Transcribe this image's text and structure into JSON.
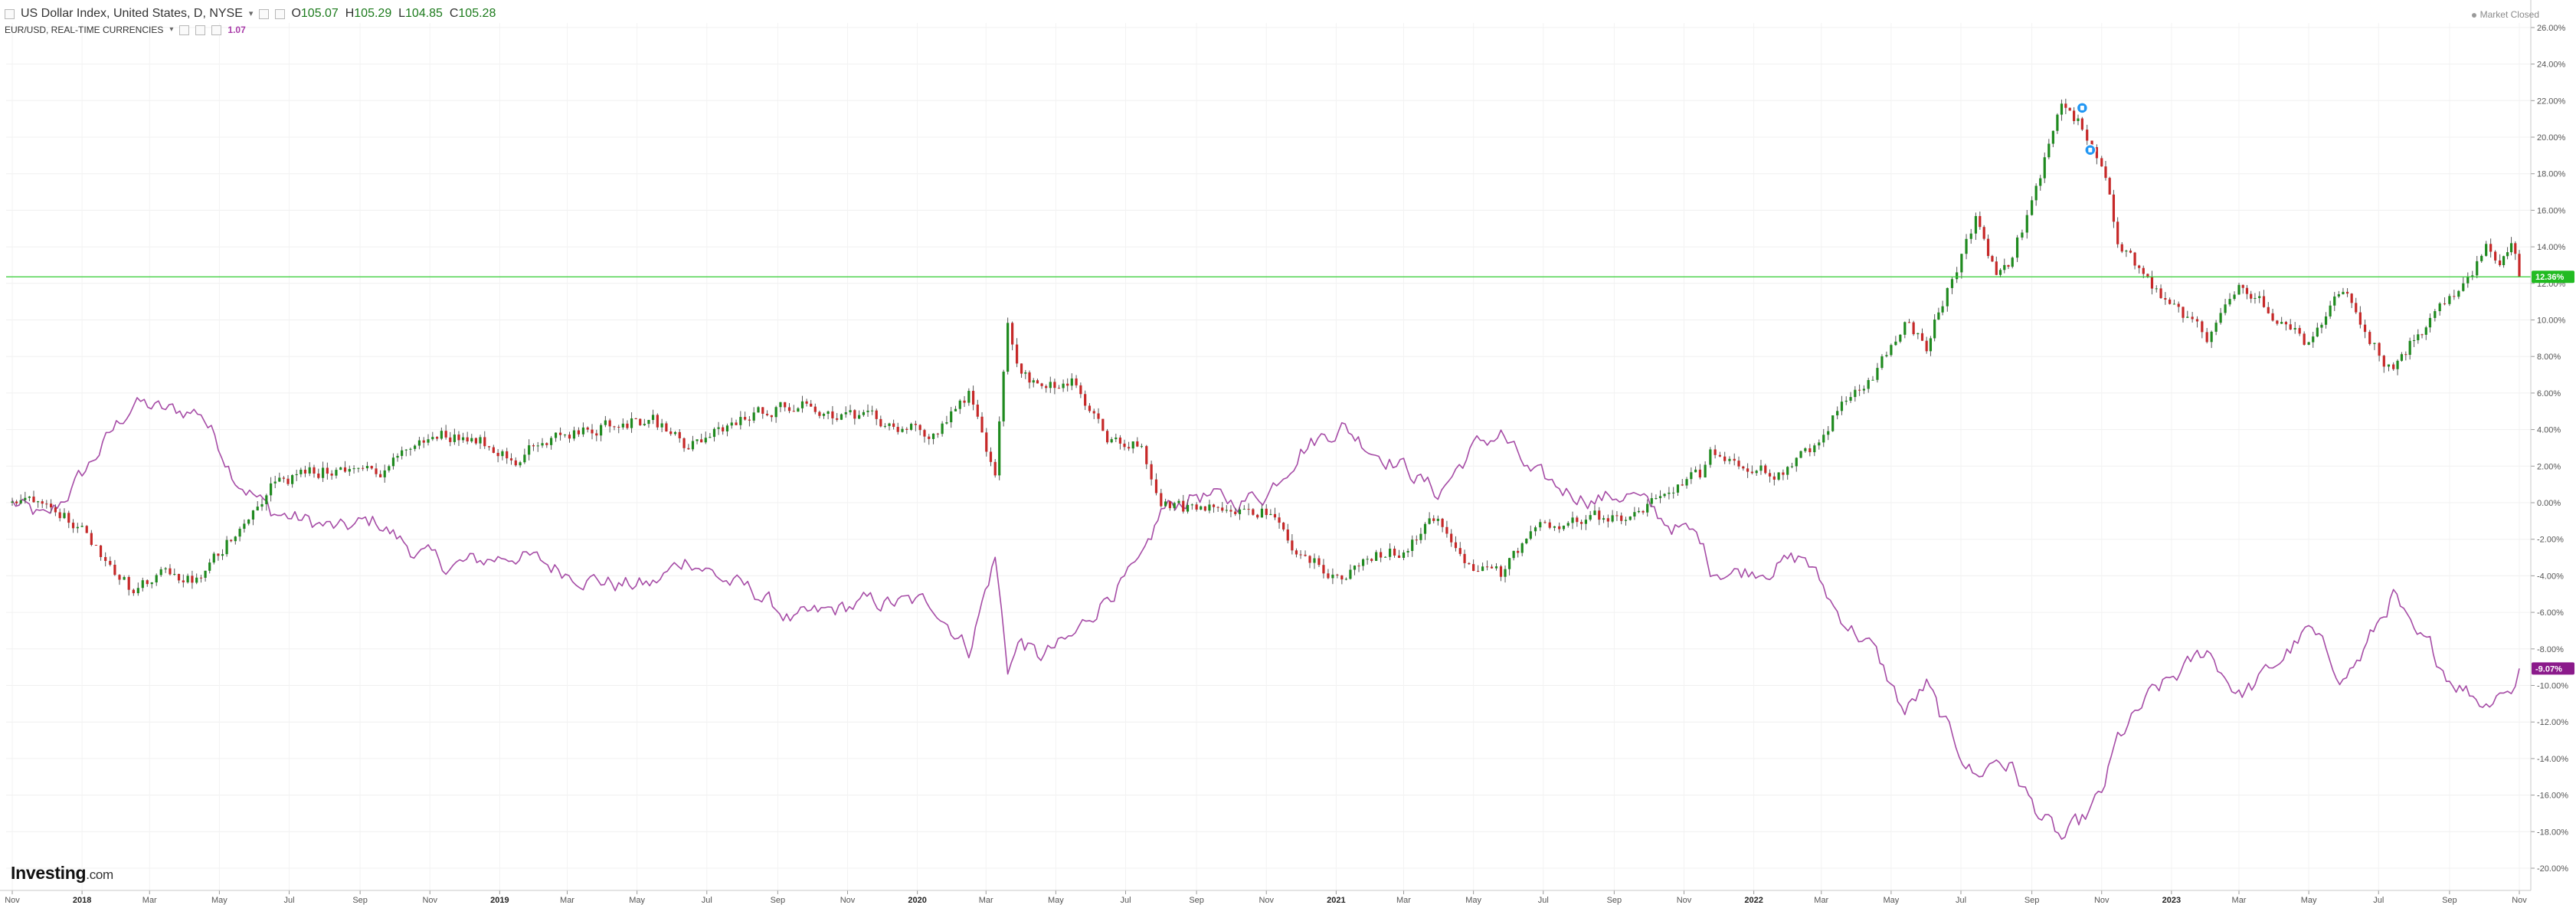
{
  "header": {
    "instrument_title": "US Dollar Index, United States, D, NYSE",
    "open_label": "O",
    "open_value": "105.07",
    "high_label": "H",
    "high_value": "105.29",
    "low_label": "L",
    "low_value": "104.85",
    "close_label": "C",
    "close_value": "105.28",
    "compare_title": "EUR/USD, REAL-TIME CURRENCIES",
    "compare_value": "1.07",
    "market_status": "Market Closed"
  },
  "branding": {
    "logo_text": "Investing",
    "logo_suffix": ".com"
  },
  "colors": {
    "up_candle": "#1f8a1f",
    "down_candle": "#c62828",
    "eurusd_line": "#a64ca6",
    "current_level_line": "#33cc33",
    "dxy_badge": "#22bb22",
    "eurusd_badge": "#8b1a8b",
    "event_marker": "#2196f3"
  },
  "chart_data": {
    "type": "line",
    "chart_style": "candlestick (DXY) with EUR/USD comparison line",
    "y_scale": "percent change from start",
    "ylim": [
      -21,
      27
    ],
    "y_ticks": [
      "26.00%",
      "24.00%",
      "22.00%",
      "20.00%",
      "18.00%",
      "16.00%",
      "14.00%",
      "12.00%",
      "10.00%",
      "8.00%",
      "6.00%",
      "4.00%",
      "2.00%",
      "0.00%",
      "-2.00%",
      "-4.00%",
      "-6.00%",
      "-8.00%",
      "-10.00%",
      "-12.00%",
      "-14.00%",
      "-16.00%",
      "-18.00%",
      "-20.00%"
    ],
    "x_tick_labels": [
      {
        "x": "2017-11",
        "label": "Nov"
      },
      {
        "x": "2018-01",
        "label": "2018",
        "bold": true
      },
      {
        "x": "2018-03",
        "label": "Mar"
      },
      {
        "x": "2018-05",
        "label": "May"
      },
      {
        "x": "2018-07",
        "label": "Jul"
      },
      {
        "x": "2018-09",
        "label": "Sep"
      },
      {
        "x": "2018-11",
        "label": "Nov"
      },
      {
        "x": "2019-01",
        "label": "2019",
        "bold": true
      },
      {
        "x": "2019-03",
        "label": "Mar"
      },
      {
        "x": "2019-05",
        "label": "May"
      },
      {
        "x": "2019-07",
        "label": "Jul"
      },
      {
        "x": "2019-09",
        "label": "Sep"
      },
      {
        "x": "2019-11",
        "label": "Nov"
      },
      {
        "x": "2020-01",
        "label": "2020",
        "bold": true
      },
      {
        "x": "2020-03",
        "label": "Mar"
      },
      {
        "x": "2020-05",
        "label": "May"
      },
      {
        "x": "2020-07",
        "label": "Jul"
      },
      {
        "x": "2020-09",
        "label": "Sep"
      },
      {
        "x": "2020-11",
        "label": "Nov"
      },
      {
        "x": "2021-01",
        "label": "2021",
        "bold": true
      },
      {
        "x": "2021-03",
        "label": "Mar"
      },
      {
        "x": "2021-05",
        "label": "May"
      },
      {
        "x": "2021-07",
        "label": "Jul"
      },
      {
        "x": "2021-09",
        "label": "Sep"
      },
      {
        "x": "2021-11",
        "label": "Nov"
      },
      {
        "x": "2022-01",
        "label": "2022",
        "bold": true
      },
      {
        "x": "2022-03",
        "label": "Mar"
      },
      {
        "x": "2022-05",
        "label": "May"
      },
      {
        "x": "2022-07",
        "label": "Jul"
      },
      {
        "x": "2022-09",
        "label": "Sep"
      },
      {
        "x": "2022-11",
        "label": "Nov"
      },
      {
        "x": "2023-01",
        "label": "2023",
        "bold": true
      },
      {
        "x": "2023-03",
        "label": "Mar"
      },
      {
        "x": "2023-05",
        "label": "May"
      },
      {
        "x": "2023-07",
        "label": "Jul"
      },
      {
        "x": "2023-09",
        "label": "Sep"
      },
      {
        "x": "2023-11",
        "label": "Nov"
      }
    ],
    "grid": true,
    "current_level": {
      "value": 12.36,
      "label": "12.36%"
    },
    "event_markers": [
      {
        "x": "2022-10-15",
        "y": 21.6
      },
      {
        "x": "2022-10-22",
        "y": 19.3
      }
    ],
    "series": [
      {
        "name": "US Dollar Index, United States, D, NYSE",
        "style": "candlestick",
        "last_label": "12.36%",
        "points": [
          {
            "x": "2017-11-01",
            "y": 0.0
          },
          {
            "x": "2017-12-01",
            "y": 0.5
          },
          {
            "x": "2018-01-01",
            "y": -1.5
          },
          {
            "x": "2018-02-15",
            "y": -4.8
          },
          {
            "x": "2018-03-15",
            "y": -4.0
          },
          {
            "x": "2018-04-15",
            "y": -4.3
          },
          {
            "x": "2018-05-15",
            "y": -1.5
          },
          {
            "x": "2018-06-15",
            "y": 1.0
          },
          {
            "x": "2018-07-15",
            "y": 1.5
          },
          {
            "x": "2018-08-15",
            "y": 2.0
          },
          {
            "x": "2018-09-15",
            "y": 1.5
          },
          {
            "x": "2018-10-15",
            "y": 3.0
          },
          {
            "x": "2018-11-15",
            "y": 3.8
          },
          {
            "x": "2018-12-15",
            "y": 3.5
          },
          {
            "x": "2019-01-15",
            "y": 2.5
          },
          {
            "x": "2019-02-15",
            "y": 3.5
          },
          {
            "x": "2019-03-15",
            "y": 3.8
          },
          {
            "x": "2019-04-15",
            "y": 4.5
          },
          {
            "x": "2019-05-15",
            "y": 4.5
          },
          {
            "x": "2019-06-15",
            "y": 3.0
          },
          {
            "x": "2019-07-15",
            "y": 4.0
          },
          {
            "x": "2019-08-15",
            "y": 5.0
          },
          {
            "x": "2019-09-15",
            "y": 5.5
          },
          {
            "x": "2019-10-15",
            "y": 5.0
          },
          {
            "x": "2019-11-15",
            "y": 4.5
          },
          {
            "x": "2019-12-15",
            "y": 4.2
          },
          {
            "x": "2020-01-15",
            "y": 3.8
          },
          {
            "x": "2020-02-15",
            "y": 6.0
          },
          {
            "x": "2020-03-09",
            "y": 1.5
          },
          {
            "x": "2020-03-20",
            "y": 9.5
          },
          {
            "x": "2020-04-01",
            "y": 7.0
          },
          {
            "x": "2020-04-15",
            "y": 6.5
          },
          {
            "x": "2020-05-15",
            "y": 6.5
          },
          {
            "x": "2020-06-15",
            "y": 3.5
          },
          {
            "x": "2020-07-15",
            "y": 3.0
          },
          {
            "x": "2020-08-01",
            "y": 0.0
          },
          {
            "x": "2020-09-01",
            "y": -0.5
          },
          {
            "x": "2020-10-01",
            "y": 0.0
          },
          {
            "x": "2020-11-01",
            "y": -0.5
          },
          {
            "x": "2020-12-01",
            "y": -3.0
          },
          {
            "x": "2021-01-06",
            "y": -4.0
          },
          {
            "x": "2021-02-01",
            "y": -3.0
          },
          {
            "x": "2021-03-01",
            "y": -2.5
          },
          {
            "x": "2021-03-31",
            "y": -0.8
          },
          {
            "x": "2021-05-01",
            "y": -3.5
          },
          {
            "x": "2021-05-25",
            "y": -4.0
          },
          {
            "x": "2021-06-20",
            "y": -1.5
          },
          {
            "x": "2021-07-15",
            "y": -1.0
          },
          {
            "x": "2021-08-15",
            "y": -0.8
          },
          {
            "x": "2021-09-15",
            "y": -1.0
          },
          {
            "x": "2021-10-15",
            "y": 0.5
          },
          {
            "x": "2021-11-15",
            "y": 1.5
          },
          {
            "x": "2021-11-24",
            "y": 2.8
          },
          {
            "x": "2021-12-15",
            "y": 2.5
          },
          {
            "x": "2022-01-15",
            "y": 1.5
          },
          {
            "x": "2022-02-15",
            "y": 2.5
          },
          {
            "x": "2022-03-15",
            "y": 5.0
          },
          {
            "x": "2022-04-15",
            "y": 7.0
          },
          {
            "x": "2022-05-13",
            "y": 10.0
          },
          {
            "x": "2022-06-01",
            "y": 8.5
          },
          {
            "x": "2022-06-15",
            "y": 11.0
          },
          {
            "x": "2022-07-14",
            "y": 15.5
          },
          {
            "x": "2022-08-01",
            "y": 12.5
          },
          {
            "x": "2022-08-15",
            "y": 13.5
          },
          {
            "x": "2022-09-01",
            "y": 16.5
          },
          {
            "x": "2022-09-27",
            "y": 21.5
          },
          {
            "x": "2022-10-15",
            "y": 20.5
          },
          {
            "x": "2022-11-01",
            "y": 18.5
          },
          {
            "x": "2022-11-15",
            "y": 14.5
          },
          {
            "x": "2022-12-15",
            "y": 11.5
          },
          {
            "x": "2023-01-15",
            "y": 10.0
          },
          {
            "x": "2023-02-01",
            "y": 9.0
          },
          {
            "x": "2023-03-01",
            "y": 12.0
          },
          {
            "x": "2023-03-15",
            "y": 11.5
          },
          {
            "x": "2023-04-15",
            "y": 9.5
          },
          {
            "x": "2023-05-01",
            "y": 8.5
          },
          {
            "x": "2023-05-31",
            "y": 11.5
          },
          {
            "x": "2023-06-15",
            "y": 10.0
          },
          {
            "x": "2023-07-14",
            "y": 7.0
          },
          {
            "x": "2023-08-01",
            "y": 9.0
          },
          {
            "x": "2023-08-15",
            "y": 10.0
          },
          {
            "x": "2023-09-01",
            "y": 11.0
          },
          {
            "x": "2023-10-03",
            "y": 13.8
          },
          {
            "x": "2023-10-15",
            "y": 13.0
          },
          {
            "x": "2023-10-25",
            "y": 13.8
          },
          {
            "x": "2023-11-01",
            "y": 12.36
          }
        ]
      },
      {
        "name": "EUR/USD, REAL-TIME CURRENCIES",
        "style": "line",
        "last_label": "-9.07%",
        "points": [
          {
            "x": "2017-11-01",
            "y": 0.0
          },
          {
            "x": "2017-12-01",
            "y": -1.0
          },
          {
            "x": "2018-01-01",
            "y": 1.5
          },
          {
            "x": "2018-02-15",
            "y": 5.5
          },
          {
            "x": "2018-03-15",
            "y": 5.0
          },
          {
            "x": "2018-04-15",
            "y": 5.0
          },
          {
            "x": "2018-05-15",
            "y": 1.5
          },
          {
            "x": "2018-06-15",
            "y": -0.5
          },
          {
            "x": "2018-07-15",
            "y": -1.0
          },
          {
            "x": "2018-08-15",
            "y": -1.5
          },
          {
            "x": "2018-09-15",
            "y": -1.0
          },
          {
            "x": "2018-10-15",
            "y": -2.5
          },
          {
            "x": "2018-11-15",
            "y": -3.5
          },
          {
            "x": "2018-12-15",
            "y": -3.2
          },
          {
            "x": "2019-01-15",
            "y": -2.8
          },
          {
            "x": "2019-02-15",
            "y": -3.5
          },
          {
            "x": "2019-03-15",
            "y": -4.0
          },
          {
            "x": "2019-04-15",
            "y": -4.5
          },
          {
            "x": "2019-05-15",
            "y": -4.5
          },
          {
            "x": "2019-06-15",
            "y": -3.0
          },
          {
            "x": "2019-07-15",
            "y": -4.2
          },
          {
            "x": "2019-08-15",
            "y": -5.0
          },
          {
            "x": "2019-09-15",
            "y": -6.5
          },
          {
            "x": "2019-10-15",
            "y": -6.0
          },
          {
            "x": "2019-11-15",
            "y": -5.5
          },
          {
            "x": "2019-12-15",
            "y": -5.5
          },
          {
            "x": "2020-01-15",
            "y": -5.5
          },
          {
            "x": "2020-02-15",
            "y": -8.0
          },
          {
            "x": "2020-03-09",
            "y": -3.0
          },
          {
            "x": "2020-03-20",
            "y": -9.0
          },
          {
            "x": "2020-04-01",
            "y": -7.5
          },
          {
            "x": "2020-04-15",
            "y": -8.5
          },
          {
            "x": "2020-05-15",
            "y": -7.5
          },
          {
            "x": "2020-06-15",
            "y": -5.0
          },
          {
            "x": "2020-07-15",
            "y": -3.5
          },
          {
            "x": "2020-08-01",
            "y": -0.5
          },
          {
            "x": "2020-09-01",
            "y": 0.5
          },
          {
            "x": "2020-10-01",
            "y": 0.0
          },
          {
            "x": "2020-11-01",
            "y": 0.5
          },
          {
            "x": "2020-12-01",
            "y": 3.0
          },
          {
            "x": "2021-01-06",
            "y": 4.2
          },
          {
            "x": "2021-02-01",
            "y": 3.0
          },
          {
            "x": "2021-03-01",
            "y": 2.0
          },
          {
            "x": "2021-03-31",
            "y": 0.5
          },
          {
            "x": "2021-05-01",
            "y": 3.0
          },
          {
            "x": "2021-05-25",
            "y": 3.8
          },
          {
            "x": "2021-06-20",
            "y": 1.5
          },
          {
            "x": "2021-07-15",
            "y": 0.8
          },
          {
            "x": "2021-08-15",
            "y": 0.2
          },
          {
            "x": "2021-09-15",
            "y": 0.5
          },
          {
            "x": "2021-10-15",
            "y": -1.0
          },
          {
            "x": "2021-11-15",
            "y": -2.0
          },
          {
            "x": "2021-11-24",
            "y": -3.5
          },
          {
            "x": "2021-12-15",
            "y": -3.8
          },
          {
            "x": "2022-01-15",
            "y": -3.5
          },
          {
            "x": "2022-02-15",
            "y": -3.0
          },
          {
            "x": "2022-03-15",
            "y": -6.0
          },
          {
            "x": "2022-04-15",
            "y": -8.0
          },
          {
            "x": "2022-05-13",
            "y": -11.5
          },
          {
            "x": "2022-06-01",
            "y": -10.0
          },
          {
            "x": "2022-06-15",
            "y": -12.0
          },
          {
            "x": "2022-07-14",
            "y": -15.0
          },
          {
            "x": "2022-08-01",
            "y": -14.0
          },
          {
            "x": "2022-08-15",
            "y": -14.5
          },
          {
            "x": "2022-09-01",
            "y": -16.5
          },
          {
            "x": "2022-09-27",
            "y": -18.5
          },
          {
            "x": "2022-10-15",
            "y": -17.5
          },
          {
            "x": "2022-11-01",
            "y": -16.0
          },
          {
            "x": "2022-11-15",
            "y": -13.0
          },
          {
            "x": "2022-12-15",
            "y": -10.5
          },
          {
            "x": "2023-01-15",
            "y": -9.0
          },
          {
            "x": "2023-02-01",
            "y": -8.0
          },
          {
            "x": "2023-03-01",
            "y": -10.5
          },
          {
            "x": "2023-03-15",
            "y": -10.0
          },
          {
            "x": "2023-04-15",
            "y": -8.0
          },
          {
            "x": "2023-05-01",
            "y": -7.0
          },
          {
            "x": "2023-05-31",
            "y": -9.5
          },
          {
            "x": "2023-06-15",
            "y": -8.5
          },
          {
            "x": "2023-07-14",
            "y": -5.0
          },
          {
            "x": "2023-08-01",
            "y": -7.5
          },
          {
            "x": "2023-08-15",
            "y": -8.0
          },
          {
            "x": "2023-09-01",
            "y": -9.5
          },
          {
            "x": "2023-10-03",
            "y": -11.0
          },
          {
            "x": "2023-10-15",
            "y": -10.0
          },
          {
            "x": "2023-10-25",
            "y": -10.5
          },
          {
            "x": "2023-11-01",
            "y": -9.07
          }
        ]
      }
    ]
  }
}
